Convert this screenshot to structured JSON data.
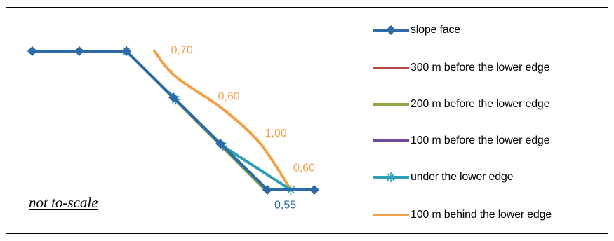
{
  "chart_data": {
    "type": "line",
    "title": "",
    "xlabel": "",
    "ylabel": "",
    "grid": false,
    "legend": "right",
    "note": "not to-scale",
    "series": [
      {
        "name": "slope face",
        "color": "#2E6AA6",
        "marker": "diamond",
        "points": [
          [
            0,
            0
          ],
          [
            1,
            0
          ],
          [
            2,
            0
          ],
          [
            3,
            -1
          ],
          [
            4,
            -2
          ],
          [
            5,
            -3
          ],
          [
            6,
            -3
          ]
        ]
      },
      {
        "name": "300 m  before the lower edge",
        "color": "#B5473F",
        "marker": "none",
        "points": [
          [
            2,
            0
          ],
          [
            5,
            -3
          ]
        ]
      },
      {
        "name": "200 m before the lower edge",
        "color": "#8DA643",
        "marker": "none",
        "points": [
          [
            2,
            0
          ],
          [
            4.95,
            -3
          ]
        ]
      },
      {
        "name": "100 m  before the lower edge",
        "color": "#6E4A9A",
        "marker": "none",
        "points": [
          [
            2,
            0
          ],
          [
            5,
            -3
          ]
        ]
      },
      {
        "name": "under the lower edge",
        "color": "#2C9FB3",
        "marker": "star",
        "points": [
          [
            2,
            0
          ],
          [
            3.05,
            -1.05
          ],
          [
            4.05,
            -2.05
          ],
          [
            5.5,
            -3
          ]
        ]
      },
      {
        "name": "100 m behind the lower edge",
        "color": "#F2A14A",
        "marker": "none",
        "points": [
          [
            2.6,
            0
          ],
          [
            3.05,
            -0.55
          ],
          [
            4.05,
            -1.25
          ],
          [
            4.85,
            -2
          ],
          [
            5.5,
            -3
          ]
        ]
      }
    ],
    "annotations": [
      {
        "text": "0,70",
        "color": "#F2A14A",
        "x": 2.95,
        "y": -0.05
      },
      {
        "text": "0,60",
        "color": "#F2A14A",
        "x": 3.95,
        "y": -1.05
      },
      {
        "text": "1,00",
        "color": "#F2A14A",
        "x": 4.95,
        "y": -1.85
      },
      {
        "text": "0,60",
        "color": "#F2A14A",
        "x": 5.55,
        "y": -2.6
      },
      {
        "text": "0,55",
        "color": "#2E6AA6",
        "x": 5.15,
        "y": -3.4
      }
    ]
  }
}
